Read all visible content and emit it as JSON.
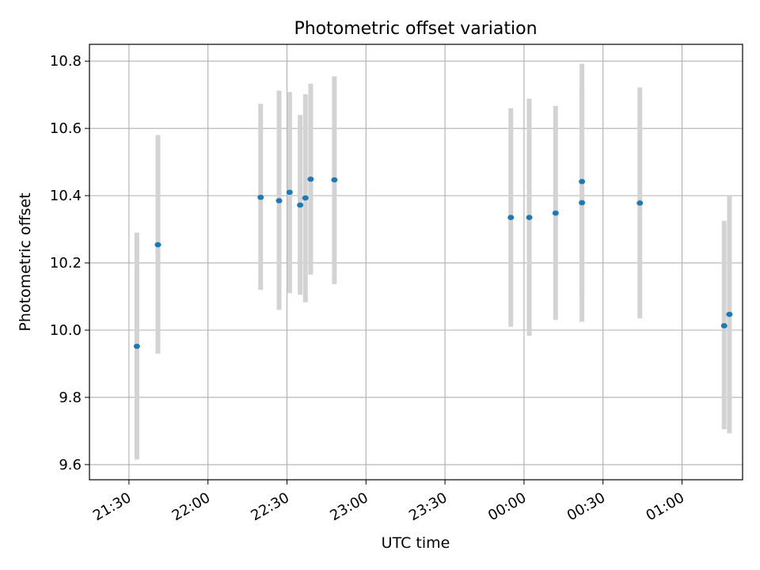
{
  "chart_data": {
    "type": "scatter",
    "title": "Photometric offset variation",
    "xlabel": "UTC time",
    "ylabel": "Photometric offset",
    "xlim": [
      "21:15",
      "01:23"
    ],
    "ylim": [
      9.555,
      10.85
    ],
    "x_ticks": [
      "21:30",
      "22:00",
      "22:30",
      "23:00",
      "23:30",
      "00:00",
      "00:30",
      "01:00"
    ],
    "y_ticks": [
      "9.6",
      "9.8",
      "10.0",
      "10.2",
      "10.4",
      "10.6",
      "10.8"
    ],
    "grid": true,
    "colors": {
      "point": "#1f77b4",
      "errorbar": "#d3d3d3",
      "grid": "#b0b0b0",
      "axes": "#000000"
    },
    "points": [
      {
        "time": "21:33",
        "value": 9.952,
        "low": 9.615,
        "high": 10.29
      },
      {
        "time": "21:41",
        "value": 10.254,
        "low": 9.93,
        "high": 10.58
      },
      {
        "time": "22:20",
        "value": 10.395,
        "low": 10.12,
        "high": 10.673
      },
      {
        "time": "22:27",
        "value": 10.385,
        "low": 10.06,
        "high": 10.712
      },
      {
        "time": "22:31",
        "value": 10.41,
        "low": 10.11,
        "high": 10.708
      },
      {
        "time": "22:35",
        "value": 10.372,
        "low": 10.105,
        "high": 10.64
      },
      {
        "time": "22:37",
        "value": 10.393,
        "low": 10.083,
        "high": 10.702
      },
      {
        "time": "22:39",
        "value": 10.449,
        "low": 10.165,
        "high": 10.733
      },
      {
        "time": "22:48",
        "value": 10.447,
        "low": 10.137,
        "high": 10.755
      },
      {
        "time": "23:55",
        "value": 10.335,
        "low": 10.01,
        "high": 10.66
      },
      {
        "time": "00:02",
        "value": 10.335,
        "low": 9.983,
        "high": 10.688
      },
      {
        "time": "00:12",
        "value": 10.348,
        "low": 10.03,
        "high": 10.667
      },
      {
        "time": "00:22",
        "value": 10.379,
        "low": 10.025,
        "high": 10.733
      },
      {
        "time": "00:22",
        "value": 10.442,
        "low": 10.097,
        "high": 10.792
      },
      {
        "time": "00:44",
        "value": 10.378,
        "low": 10.035,
        "high": 10.722
      },
      {
        "time": "01:16",
        "value": 10.013,
        "low": 9.705,
        "high": 10.325
      },
      {
        "time": "01:18",
        "value": 10.047,
        "low": 9.693,
        "high": 10.4
      }
    ]
  }
}
